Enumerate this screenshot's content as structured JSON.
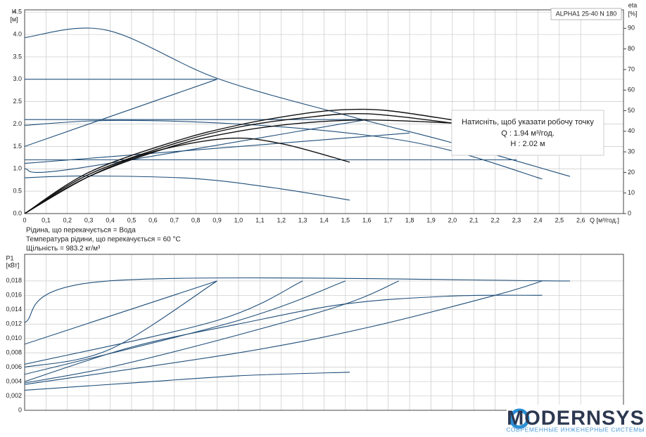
{
  "chart_data": [
    {
      "type": "line",
      "title": "ALPHA1 25-40 N 180",
      "ylabel": "H",
      "yunit": "[м]",
      "y2label": "eta",
      "y2unit": "[%]",
      "xlabel": "Q [м³/год.]",
      "xlim": [
        0,
        2.8
      ],
      "ylim": [
        0,
        4.55
      ],
      "y2lim": [
        0,
        99
      ],
      "grid": true,
      "xticks": [
        0,
        {
          "value": 0.1,
          "label": "0,1"
        },
        {
          "value": 0.2,
          "label": "0,2"
        },
        {
          "value": 0.3,
          "label": "0,3"
        },
        {
          "value": 0.4,
          "label": "0,4"
        },
        {
          "value": 0.5,
          "label": "0,5"
        },
        {
          "value": 0.6,
          "label": "0,6"
        },
        {
          "value": 0.7,
          "label": "0,7"
        },
        {
          "value": 0.8,
          "label": "0,8"
        },
        {
          "value": 0.9,
          "label": "0,9"
        },
        {
          "value": 1.0,
          "label": "1,0"
        },
        {
          "value": 1.1,
          "label": "1,1"
        },
        {
          "value": 1.2,
          "label": "1,2"
        },
        {
          "value": 1.3,
          "label": "1,3"
        },
        {
          "value": 1.4,
          "label": "1,4"
        },
        {
          "value": 1.5,
          "label": "1,5"
        },
        {
          "value": 1.6,
          "label": "1,6"
        },
        {
          "value": 1.7,
          "label": "1,7"
        },
        {
          "value": 1.8,
          "label": "1,8"
        },
        {
          "value": 1.9,
          "label": "1,9"
        },
        {
          "value": 2.0,
          "label": "2,0"
        },
        {
          "value": 2.1,
          "label": "2,1"
        },
        {
          "value": 2.2,
          "label": "2,2"
        },
        {
          "value": 2.3,
          "label": "2,3"
        },
        {
          "value": 2.4,
          "label": "2,4"
        },
        {
          "value": 2.5,
          "label": "2,5"
        },
        {
          "value": 2.6,
          "label": "2,6"
        }
      ],
      "yticks": [
        {
          "value": 0,
          "label": "0.0"
        },
        0.5,
        {
          "value": 1,
          "label": "1.0"
        },
        1.5,
        {
          "value": 2,
          "label": "2.0"
        },
        2.5,
        {
          "value": 3,
          "label": "3.0"
        },
        3.5,
        {
          "value": 4,
          "label": "4.0"
        },
        4.5
      ],
      "y2ticks": [
        0,
        10,
        20,
        30,
        40,
        50,
        60,
        70,
        80,
        90
      ],
      "series": [
        {
          "color": "#1f4e79",
          "x": [
            0,
            0.38,
            0.9,
            1.5,
            2.0,
            2.55
          ],
          "values": [
            3.93,
            4.1,
            3.02,
            2.2,
            1.58,
            0.83
          ]
        },
        {
          "color": "#1f4e79",
          "x": [
            0,
            0.9
          ],
          "values": [
            3.0,
            3.0
          ]
        },
        {
          "color": "#1f4e79",
          "x": [
            0,
            0.9
          ],
          "values": [
            1.5,
            3.0
          ]
        },
        {
          "color": "#1f4e79",
          "x": [
            0,
            0.4,
            1.0,
            1.6,
            2.0,
            2.42
          ],
          "values": [
            1.97,
            2.08,
            2.0,
            1.75,
            1.4,
            0.77
          ]
        },
        {
          "color": "#1f4e79",
          "x": [
            0,
            1.6
          ],
          "values": [
            2.1,
            2.1
          ]
        },
        {
          "color": "#1f4e79",
          "x": [
            0,
            1.8
          ],
          "values": [
            1.12,
            1.8
          ]
        },
        {
          "color": "#1f4e79",
          "x": [
            0,
            2.3
          ],
          "values": [
            1.2,
            1.2
          ]
        },
        {
          "color": "#1f4e79",
          "x": [
            0,
            0.23,
            1.6
          ],
          "values": [
            1.0,
            1.0,
            2.1
          ]
        },
        {
          "color": "#1f4e79",
          "x": [
            0,
            0.3,
            0.8,
            1.2,
            1.52
          ],
          "values": [
            0.8,
            0.84,
            0.78,
            0.55,
            0.3
          ]
        },
        {
          "color": "#111111",
          "axis": "y2",
          "x": [
            0,
            0.3,
            0.7,
            1.0,
            1.3,
            1.5,
            1.7,
            2.0
          ],
          "values": [
            0,
            20,
            35,
            43,
            48.5,
            50.5,
            50,
            45.5
          ]
        },
        {
          "color": "#111111",
          "axis": "y2",
          "x": [
            0,
            0.3,
            0.7,
            1.0,
            1.3,
            1.6,
            2.0
          ],
          "values": [
            0,
            19,
            34,
            42,
            46.5,
            48.5,
            44
          ]
        },
        {
          "color": "#111111",
          "axis": "y2",
          "x": [
            0,
            0.3,
            0.7,
            1.0,
            1.3,
            1.6,
            2.0
          ],
          "values": [
            0,
            18,
            33,
            40,
            44,
            45.5,
            44
          ]
        },
        {
          "color": "#111111",
          "axis": "y2",
          "x": [
            0,
            0.3,
            0.6,
            0.95,
            1.2,
            1.52
          ],
          "values": [
            0,
            18,
            30,
            36.5,
            34,
            25
          ]
        }
      ]
    },
    {
      "type": "line",
      "ylabel": "P1",
      "yunit": "[кВт]",
      "xlim": [
        0,
        2.8
      ],
      "ylim": [
        0,
        0.0217
      ],
      "grid": true,
      "xticks": [
        0,
        0.1,
        0.2,
        0.3,
        0.4,
        0.5,
        0.6,
        0.7,
        0.8,
        0.9,
        1.0,
        1.1,
        1.2,
        1.3,
        1.4,
        1.5,
        1.6,
        1.7,
        1.8,
        1.9,
        2.0,
        2.1,
        2.2,
        2.3,
        2.4,
        2.5,
        2.6
      ],
      "yticks": [
        0,
        {
          "value": 0.002,
          "label": "0,002"
        },
        {
          "value": 0.004,
          "label": "0,004"
        },
        {
          "value": 0.006,
          "label": "0,006"
        },
        {
          "value": 0.008,
          "label": "0,008"
        },
        {
          "value": 0.01,
          "label": "0,010"
        },
        {
          "value": 0.012,
          "label": "0,012"
        },
        {
          "value": 0.014,
          "label": "0,014"
        },
        {
          "value": 0.016,
          "label": "0,016"
        },
        {
          "value": 0.018,
          "label": "0,018"
        }
      ],
      "series": [
        {
          "color": "#1f4e79",
          "x": [
            0,
            0.39,
            2.55
          ],
          "values": [
            0.0122,
            0.018,
            0.018
          ]
        },
        {
          "color": "#1f4e79",
          "x": [
            0,
            0.9
          ],
          "values": [
            0.0092,
            0.018
          ]
        },
        {
          "color": "#1f4e79",
          "x": [
            0,
            0.4,
            0.9
          ],
          "values": [
            0.006,
            0.0085,
            0.018
          ]
        },
        {
          "color": "#1f4e79",
          "x": [
            0,
            0.9,
            1.3
          ],
          "values": [
            0.0064,
            0.0125,
            0.018
          ]
        },
        {
          "color": "#1f4e79",
          "x": [
            0,
            1.0,
            1.5
          ],
          "values": [
            0.005,
            0.0125,
            0.018
          ]
        },
        {
          "color": "#1f4e79",
          "x": [
            0,
            0.4,
            1.0,
            1.5,
            1.75
          ],
          "values": [
            0.0038,
            0.006,
            0.0105,
            0.0148,
            0.018
          ]
        },
        {
          "color": "#1f4e79",
          "x": [
            0,
            1.0,
            1.6,
            2.2,
            2.42
          ],
          "values": [
            0.0036,
            0.008,
            0.0115,
            0.016,
            0.018
          ]
        },
        {
          "color": "#1f4e79",
          "x": [
            0,
            0.5,
            1.0,
            1.5,
            2.0,
            2.42
          ],
          "values": [
            0.004,
            0.0088,
            0.012,
            0.0148,
            0.0159,
            0.016
          ]
        },
        {
          "color": "#1f4e79",
          "x": [
            0,
            0.5,
            1.0,
            1.52
          ],
          "values": [
            0.0028,
            0.0038,
            0.0048,
            0.0053
          ]
        }
      ]
    }
  ],
  "info": [
    "Рідина, що перекачується = Вода",
    "Температура рідини, що перекачується = 60 °C",
    "Щільність = 983.2 кг/м³"
  ],
  "tooltip": {
    "hint": "Натисніть, щоб указати робочу точку",
    "q": "Q : 1.94 м³/год.",
    "h": "H : 2.02 м"
  },
  "logo": {
    "name": "MODERNSYS",
    "tagline": "СОВРЕМЕННЫЕ ИНЖЕНЕРНЫЕ СИСТЕМЫ"
  }
}
